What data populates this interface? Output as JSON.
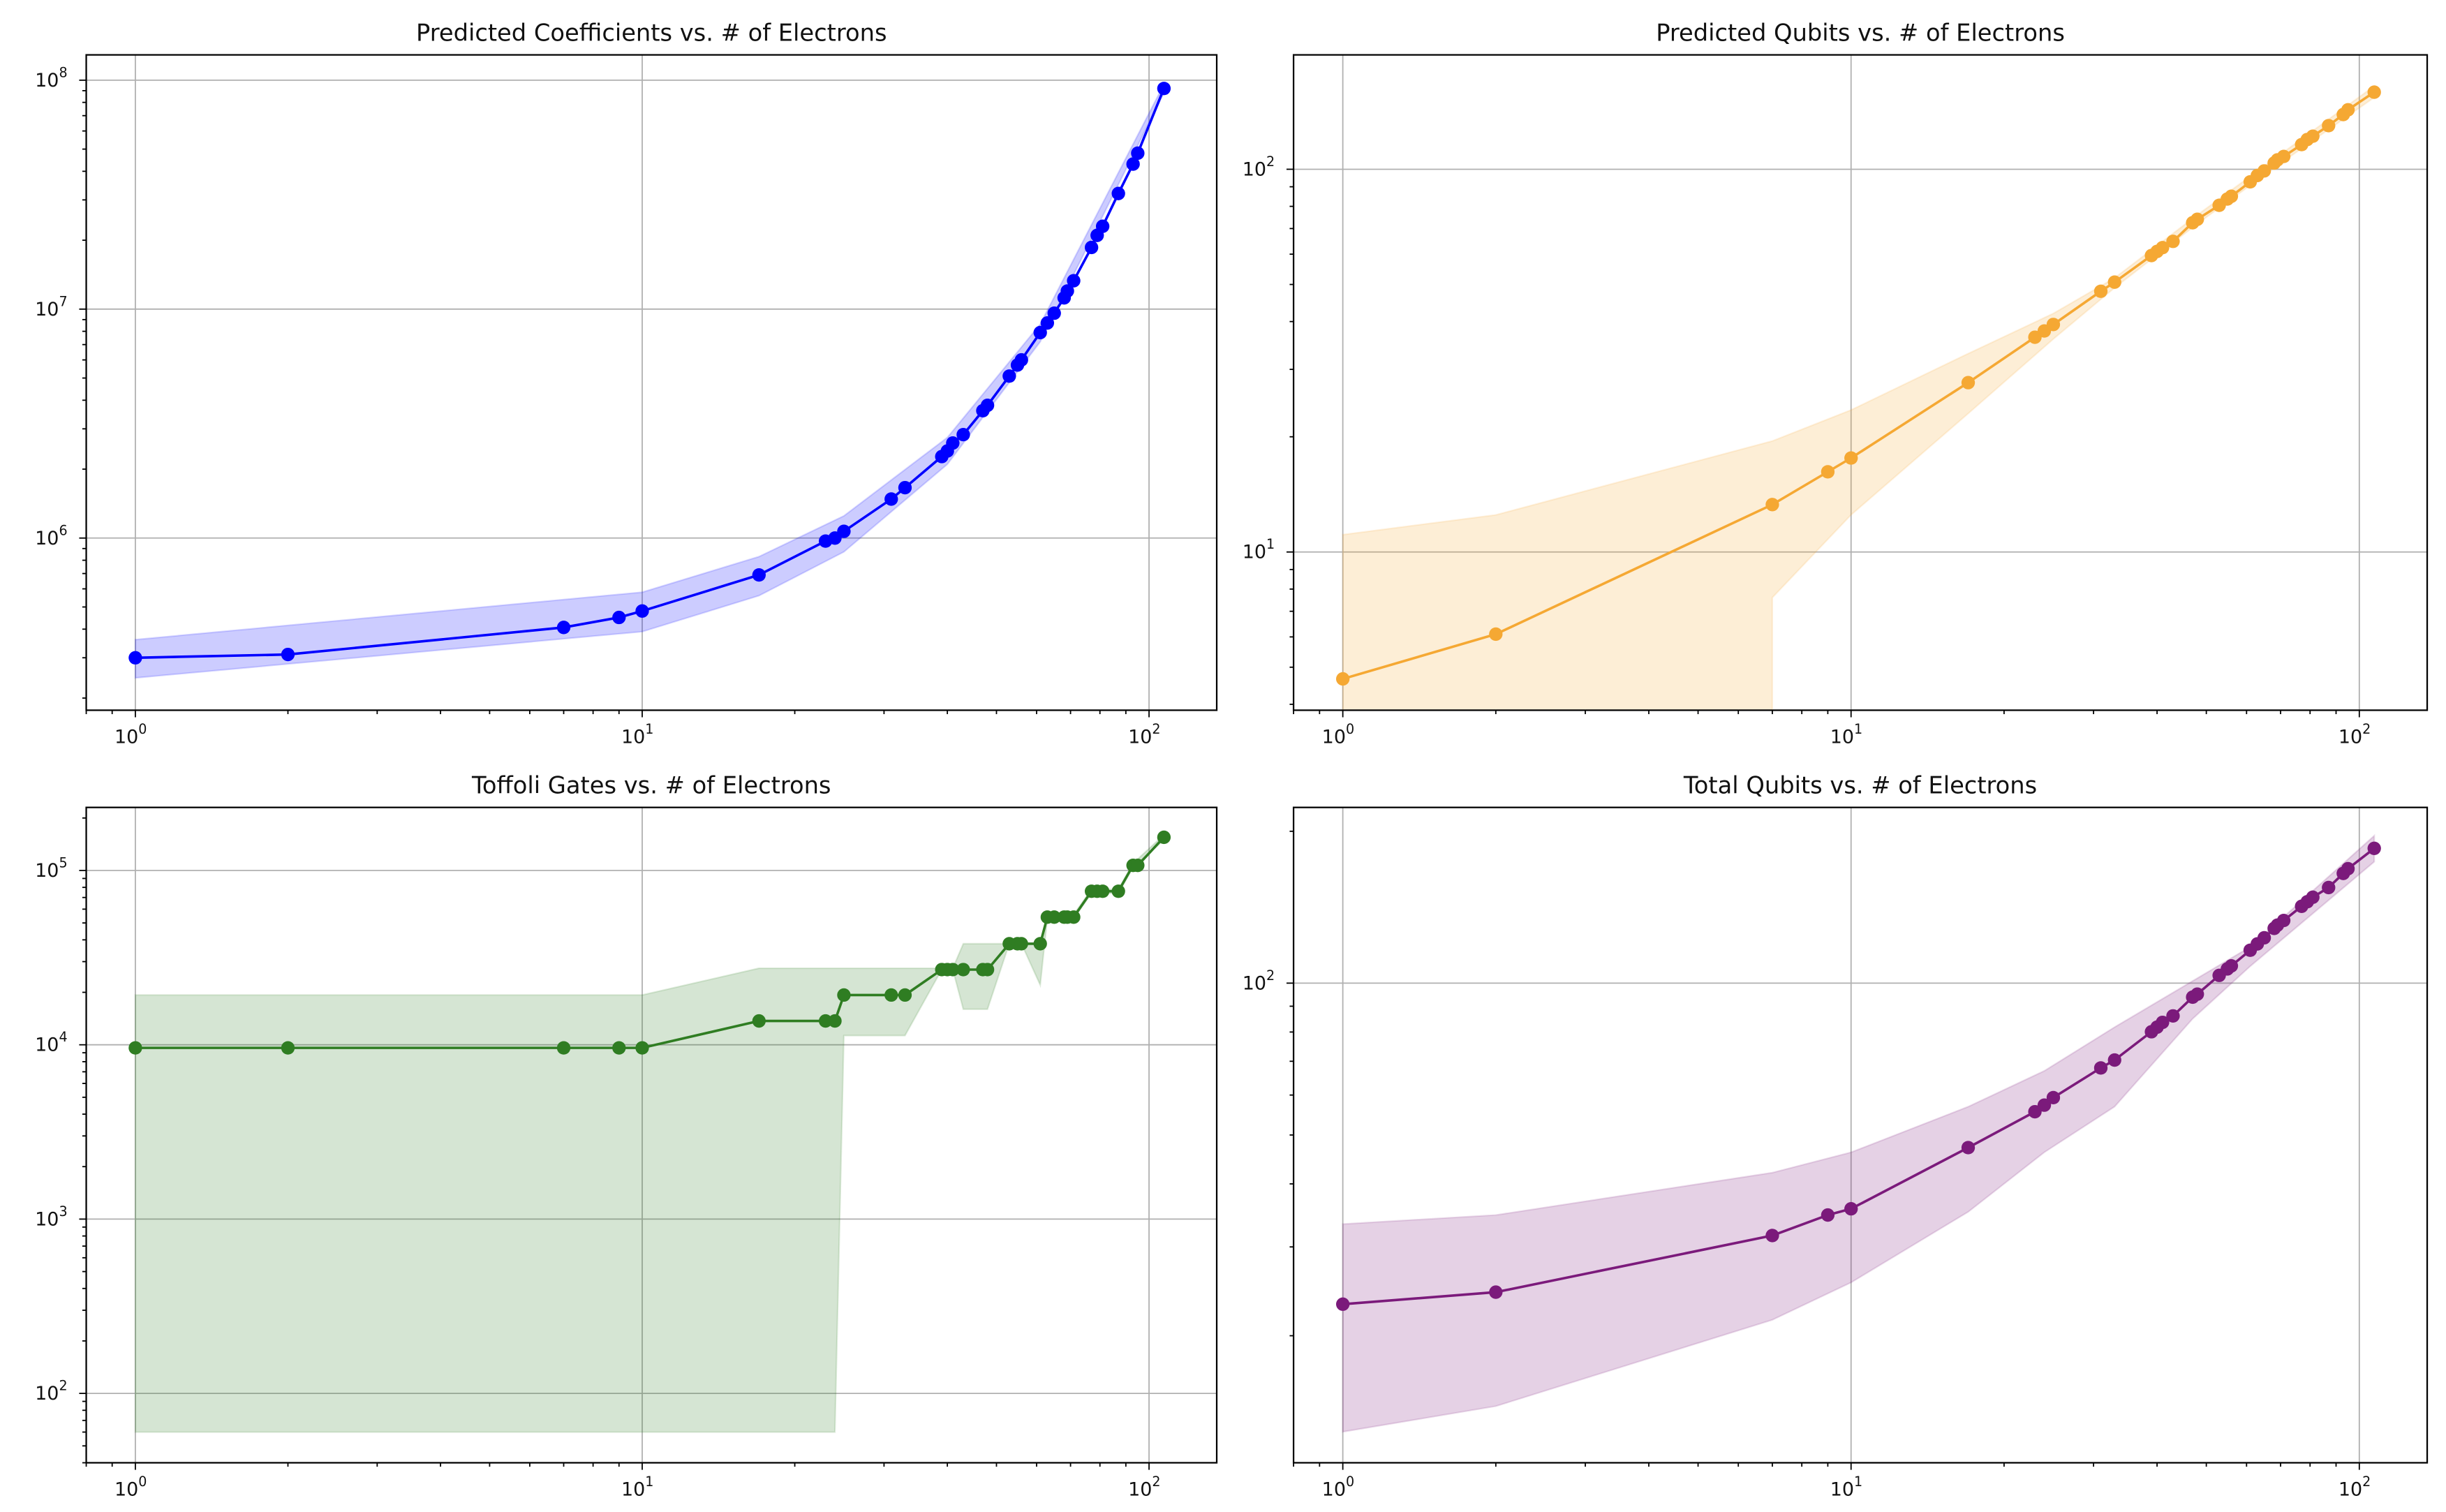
{
  "chart_data": [
    {
      "type": "line",
      "title": "Predicted Coefficients vs. # of Electrons",
      "xscale": "log",
      "yscale": "log",
      "grid": true,
      "xlim": [
        0.8,
        136
      ],
      "ylim": [
        177000,
        129000000
      ],
      "xticklabels": [
        "10^0",
        "10^1",
        "10^2"
      ],
      "xticks": [
        1,
        10,
        100
      ],
      "yticklabels": [
        "10^6",
        "10^7",
        "10^8"
      ],
      "yticks": [
        1000000,
        10000000,
        100000000
      ],
      "color": "#0000ff",
      "x": [
        1,
        2,
        7,
        9,
        10,
        17,
        23,
        24,
        25,
        31,
        33,
        39,
        40,
        41,
        43,
        47,
        48,
        53,
        55,
        56,
        61,
        63,
        65,
        68,
        69,
        71,
        77,
        79,
        81,
        87,
        93,
        95,
        107
      ],
      "y": [
        300000,
        310000,
        407000,
        450000,
        480000,
        690000,
        970000,
        1000000,
        1070000,
        1480000,
        1660000,
        2270000,
        2400000,
        2600000,
        2830000,
        3600000,
        3800000,
        5100000,
        5700000,
        6000000,
        7900000,
        8700000,
        9600000,
        11200000,
        12000000,
        13300000,
        18600000,
        21000000,
        23000000,
        32000000,
        43000000,
        48000000,
        92000000
      ],
      "band": {
        "x": [
          1,
          10,
          17,
          25,
          40,
          61,
          107
        ],
        "upper": [
          360000,
          580000,
          830000,
          1250000,
          2750000,
          8600000,
          96000000
        ],
        "lower": [
          245000,
          390000,
          560000,
          870000,
          2100000,
          7200000,
          88000000
        ]
      }
    },
    {
      "type": "line",
      "title": "Predicted Qubits vs. # of Electrons",
      "xscale": "log",
      "yscale": "log",
      "grid": true,
      "xlim": [
        0.8,
        136
      ],
      "ylim": [
        3.86,
        199
      ],
      "xticklabels": [
        "10^0",
        "10^1",
        "10^2"
      ],
      "xticks": [
        1,
        10,
        100
      ],
      "yticklabels": [
        "10^1",
        "10^2"
      ],
      "yticks": [
        10,
        100
      ],
      "color": "#f5a833",
      "x": [
        1,
        2,
        7,
        9,
        10,
        17,
        23,
        24,
        25,
        31,
        33,
        39,
        40,
        41,
        43,
        47,
        48,
        53,
        55,
        56,
        61,
        63,
        65,
        68,
        69,
        71,
        77,
        79,
        81,
        87,
        93,
        95,
        107
      ],
      "y": [
        4.66,
        6.1,
        13.3,
        16.2,
        17.6,
        27.7,
        36.4,
        37.8,
        39.3,
        48,
        50.7,
        59.5,
        61,
        62.4,
        64.8,
        72.5,
        74,
        80.5,
        83.6,
        85,
        92.7,
        96.3,
        99,
        103.8,
        105.8,
        108,
        116,
        119.6,
        122,
        130,
        139,
        143,
        159
      ],
      "band": {
        "x": [
          1,
          2,
          7,
          10,
          17,
          25,
          33,
          48,
          71,
          107
        ],
        "upper": [
          11.1,
          12.5,
          19.5,
          23.5,
          33,
          42,
          52,
          76,
          111,
          165
        ],
        "lower": [
          null,
          null,
          7.6,
          12.5,
          23,
          36,
          49,
          72,
          105,
          154
        ]
      }
    },
    {
      "type": "line",
      "title": "Toffoli Gates vs. # of Electrons",
      "xscale": "log",
      "yscale": "log",
      "grid": true,
      "xlim": [
        0.8,
        136
      ],
      "ylim": [
        40,
        230000
      ],
      "xticklabels": [
        "10^0",
        "10^1",
        "10^2"
      ],
      "xticks": [
        1,
        10,
        100
      ],
      "yticklabels": [
        "10^2",
        "10^3",
        "10^4",
        "10^5"
      ],
      "yticks": [
        100,
        1000,
        10000,
        100000
      ],
      "color": "#2f7d22",
      "x": [
        1,
        2,
        7,
        9,
        10,
        17,
        23,
        24,
        25,
        31,
        33,
        39,
        40,
        41,
        43,
        47,
        48,
        53,
        55,
        56,
        61,
        63,
        65,
        68,
        69,
        71,
        77,
        79,
        81,
        87,
        93,
        95,
        107
      ],
      "y": [
        9600,
        9600,
        9600,
        9600,
        9600,
        13700,
        13700,
        13700,
        19300,
        19300,
        19300,
        27000,
        27000,
        27000,
        27000,
        27000,
        27000,
        38000,
        38000,
        38000,
        38000,
        54000,
        54000,
        54000,
        54000,
        54000,
        76000,
        76000,
        76000,
        76000,
        107000,
        107000,
        155000
      ],
      "band": {
        "x": [
          1,
          10,
          17,
          24,
          25,
          33,
          39,
          41,
          43,
          48,
          53,
          56,
          61,
          63,
          71,
          77,
          87,
          93,
          107
        ],
        "upper": [
          19300,
          19300,
          27500,
          27500,
          27500,
          27500,
          27500,
          27500,
          38000,
          38000,
          38000,
          38000,
          38000,
          56000,
          56000,
          78000,
          78000,
          110000,
          160000
        ],
        "lower": [
          60,
          60,
          60,
          60,
          11300,
          11300,
          27000,
          27000,
          16000,
          16000,
          38000,
          38000,
          22000,
          53000,
          53000,
          74000,
          74000,
          104000,
          150000
        ]
      }
    },
    {
      "type": "line",
      "title": "Total Qubits vs. # of Electrons",
      "xscale": "log",
      "yscale": "log",
      "grid": true,
      "xlim": [
        0.8,
        136
      ],
      "ylim": [
        11.2,
        223
      ],
      "xticklabels": [
        "10^0",
        "10^1",
        "10^2"
      ],
      "xticks": [
        1,
        10,
        100
      ],
      "yticklabels": [
        "10^2"
      ],
      "yticks": [
        100
      ],
      "color": "#7b1a7b",
      "x": [
        1,
        2,
        7,
        9,
        10,
        17,
        23,
        24,
        25,
        31,
        33,
        39,
        40,
        41,
        43,
        47,
        48,
        53,
        55,
        56,
        61,
        63,
        65,
        68,
        69,
        71,
        77,
        79,
        81,
        87,
        93,
        95,
        107
      ],
      "y": [
        23.1,
        24.4,
        31.6,
        34.7,
        35.7,
        47.2,
        55.6,
        57.3,
        59.3,
        67.9,
        70.4,
        80.1,
        81.8,
        83.6,
        86.1,
        93.8,
        95.1,
        103.6,
        106.7,
        108.2,
        116.2,
        119.6,
        123,
        128.4,
        130.3,
        133.1,
        142,
        145,
        148,
        154.7,
        165,
        168.6,
        185
      ],
      "band": {
        "x": [
          1,
          2,
          7,
          10,
          17,
          24,
          33,
          47,
          61,
          107
        ],
        "upper": [
          33.3,
          34.7,
          42.1,
          46.2,
          56.9,
          67,
          81.8,
          101,
          118,
          196
        ],
        "lower": [
          12.9,
          14.5,
          21.5,
          25.5,
          35.2,
          46.2,
          56.9,
          85,
          108,
          174
        ]
      }
    }
  ]
}
